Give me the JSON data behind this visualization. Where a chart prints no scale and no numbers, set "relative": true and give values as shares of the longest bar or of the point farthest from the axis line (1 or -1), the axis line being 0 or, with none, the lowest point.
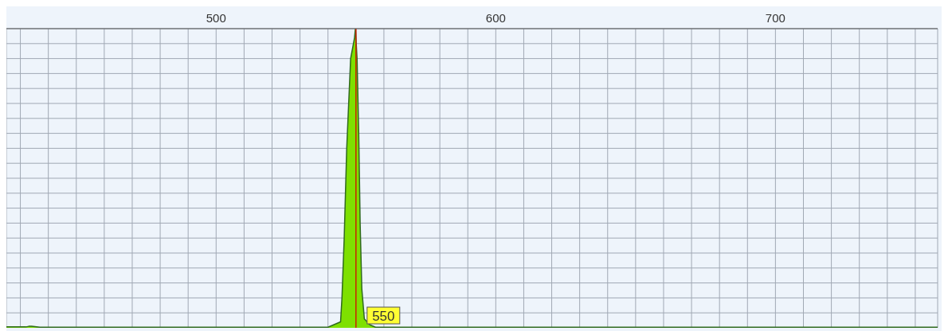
{
  "chart_data": {
    "type": "area",
    "relative": true,
    "x": [
      425,
      432,
      433,
      434,
      437,
      440,
      500,
      540,
      542,
      544.5,
      545,
      545.8,
      546.7,
      548.1,
      549.5,
      549.8,
      550.4,
      551,
      551.5,
      552.1,
      553,
      555,
      557,
      758
    ],
    "values": [
      0.003,
      0.003,
      0.005,
      0.005,
      0.002,
      0.002,
      0.002,
      0.002,
      0.01,
      0.02,
      0.1,
      0.3,
      0.6,
      0.9,
      0.97,
      1,
      0.9,
      0.65,
      0.35,
      0.13,
      0.03,
      0.01,
      0.002,
      0.002
    ],
    "color": "#7ee000",
    "xlim": [
      425,
      758
    ],
    "xticks": [
      {
        "value": 430,
        "label": null
      },
      {
        "value": 440,
        "label": null
      },
      {
        "value": 450,
        "label": null
      },
      {
        "value": 460,
        "label": null
      },
      {
        "value": 470,
        "label": null
      },
      {
        "value": 480,
        "label": null
      },
      {
        "value": 490,
        "label": null
      },
      500,
      {
        "value": 510,
        "label": null
      },
      {
        "value": 520,
        "label": null
      },
      {
        "value": 530,
        "label": null
      },
      {
        "value": 540,
        "label": null
      },
      {
        "value": 550,
        "label": null
      },
      {
        "value": 560,
        "label": null
      },
      {
        "value": 570,
        "label": null
      },
      {
        "value": 580,
        "label": null
      },
      {
        "value": 590,
        "label": null
      },
      600,
      {
        "value": 610,
        "label": null
      },
      {
        "value": 620,
        "label": null
      },
      {
        "value": 630,
        "label": null
      },
      {
        "value": 640,
        "label": null
      },
      {
        "value": 650,
        "label": null
      },
      {
        "value": 660,
        "label": null
      },
      {
        "value": 670,
        "label": null
      },
      {
        "value": 680,
        "label": null
      },
      {
        "value": 690,
        "label": null
      },
      700,
      {
        "value": 710,
        "label": null
      },
      {
        "value": 720,
        "label": null
      },
      {
        "value": 730,
        "label": null
      },
      {
        "value": 740,
        "label": null
      },
      {
        "value": 750,
        "label": null
      }
    ],
    "ref_lines": [
      {
        "axis": "x",
        "value": 550,
        "label": "550",
        "color": "#cc2200"
      }
    ],
    "grid": true,
    "marker": "none",
    "line_style": "solid"
  }
}
